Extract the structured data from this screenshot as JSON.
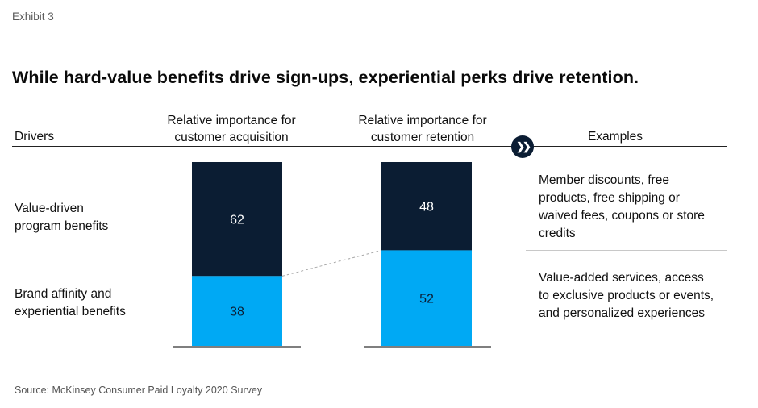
{
  "exhibit_label": "Exhibit 3",
  "title": "While hard-value benefits drive sign-ups, experiential perks drive retention.",
  "headers": {
    "drivers": "Drivers",
    "acquisition_line1": "Relative importance for",
    "acquisition_line2": "customer acquisition",
    "retention_line1": "Relative importance for",
    "retention_line2": "customer retention",
    "examples": "Examples"
  },
  "rows": [
    {
      "label_line1": "Value-driven",
      "label_line2": "program benefits",
      "examples": [
        "Member discounts, free",
        "products, free shipping or",
        "waived fees, coupons or store",
        "credits"
      ]
    },
    {
      "label_line1": "Brand affinity and",
      "label_line2": "experiential benefits",
      "examples": [
        "Value-added services, access",
        "to exclusive products or events,",
        "and personalized experiences"
      ]
    }
  ],
  "arrow_icon": "double-chevron-right-icon",
  "source": "Source: McKinsey Consumer Paid Loyalty 2020 Survey",
  "colors": {
    "value_driven": "#0b1d33",
    "brand_affinity": "#00a9f4"
  },
  "chart_data": {
    "type": "bar",
    "stacked": true,
    "percent_scale": true,
    "categories": [
      "Relative importance for customer acquisition",
      "Relative importance for customer retention"
    ],
    "series": [
      {
        "name": "Value-driven program benefits",
        "values": [
          62,
          48
        ]
      },
      {
        "name": "Brand affinity and experiential benefits",
        "values": [
          38,
          52
        ]
      }
    ],
    "ylim": [
      0,
      100
    ],
    "grid": false
  }
}
